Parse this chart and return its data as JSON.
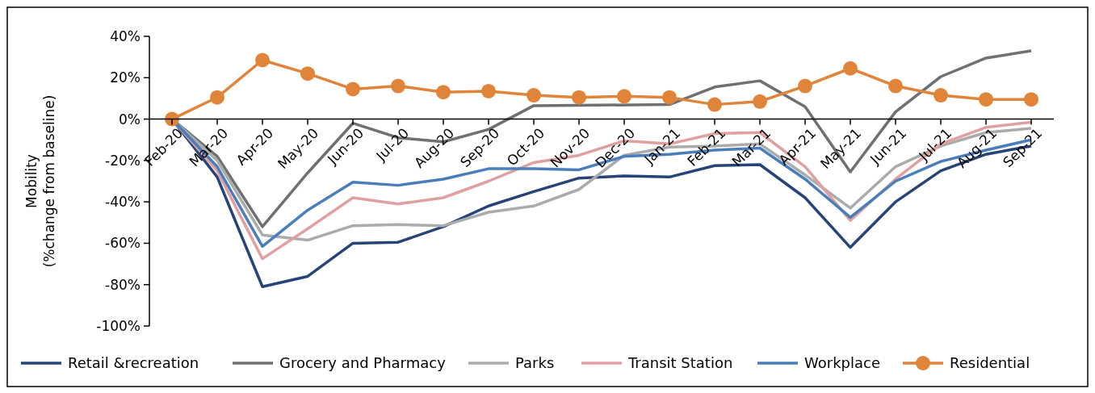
{
  "chart_data": {
    "type": "line",
    "ylabel": "Mobility\n(%change from baseline)",
    "categories": [
      "Feb-20",
      "Mar-20",
      "Apr-20",
      "May-20",
      "Jun-20",
      "Jul-20",
      "Aug-20",
      "Sep-20",
      "Oct-20",
      "Nov-20",
      "Dec-20",
      "Jan-21",
      "Feb-21",
      "Mar-21",
      "Apr-21",
      "May-21",
      "Jun-21",
      "Jul-21",
      "Aug-21",
      "Sep-21"
    ],
    "ylim": [
      -100,
      40
    ],
    "yticks": [
      {
        "value": -100,
        "label": "-100%"
      },
      {
        "value": -80,
        "label": "-80%"
      },
      {
        "value": -60,
        "label": "-60%"
      },
      {
        "value": -40,
        "label": "-40%"
      },
      {
        "value": -20,
        "label": "-20%"
      },
      {
        "value": 0,
        "label": "0%"
      },
      {
        "value": 20,
        "label": "20%"
      },
      {
        "value": 40,
        "label": "40%"
      }
    ],
    "grid": false,
    "legend": "bottom",
    "marker": "none",
    "series": [
      {
        "name": "Retail &recreation",
        "color": "#264478",
        "values": [
          0,
          -28,
          -81,
          -76,
          -60,
          -59.5,
          -52,
          -42,
          -35,
          -28.5,
          -27.5,
          -28,
          -22.5,
          -22,
          -38,
          -62,
          -40,
          -25,
          -17,
          -13
        ]
      },
      {
        "name": "Grocery and Pharmacy",
        "color": "#707070",
        "values": [
          0,
          -18,
          -52,
          -26,
          -2,
          -9,
          -11,
          -5,
          6.5,
          null,
          null,
          7,
          15.5,
          18.5,
          6,
          -25.5,
          3.5,
          20.5,
          29.5,
          33
        ]
      },
      {
        "name": "Parks",
        "color": "#ababab",
        "values": [
          0,
          -20,
          -56,
          -58.5,
          -51.5,
          -51,
          -51.5,
          -45,
          -42,
          -34,
          -17.5,
          -13.5,
          -13,
          -12,
          -27,
          -43,
          -23,
          -13,
          -6.5,
          -4.5
        ]
      },
      {
        "name": "Transit Station",
        "color": "#e0a0a0",
        "values": [
          0,
          -25,
          -67.5,
          -53,
          -38,
          -41,
          -38,
          -30,
          -21,
          -17.5,
          -10.5,
          -12,
          -7,
          -6.5,
          -23,
          -49,
          -29,
          -12,
          -4,
          -1.5
        ]
      },
      {
        "name": "Workplace",
        "color": "#4a7ebb",
        "values": [
          0,
          -23,
          -61.5,
          -44,
          -30.5,
          -32,
          -29,
          -24,
          -24,
          -24.5,
          -18,
          -17,
          -15,
          -14,
          -29,
          -47.5,
          -30,
          -20.5,
          -15,
          -10
        ]
      },
      {
        "name": "Residential",
        "color": "#e0843a",
        "marker": "circle",
        "values": [
          0,
          10.5,
          28.5,
          22,
          14.5,
          16,
          13,
          13.5,
          11.5,
          10.5,
          11,
          10.5,
          7,
          8.5,
          16,
          24.5,
          16,
          11.5,
          9.5,
          9.5
        ]
      }
    ]
  }
}
